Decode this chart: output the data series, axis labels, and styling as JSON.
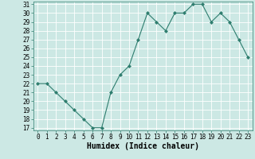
{
  "x": [
    0,
    1,
    2,
    3,
    4,
    5,
    6,
    7,
    8,
    9,
    10,
    11,
    12,
    13,
    14,
    15,
    16,
    17,
    18,
    19,
    20,
    21,
    22,
    23
  ],
  "y": [
    22,
    22,
    21,
    20,
    19,
    18,
    17,
    17,
    21,
    23,
    24,
    27,
    30,
    29,
    28,
    30,
    30,
    31,
    31,
    29,
    30,
    29,
    27,
    25
  ],
  "xlabel": "Humidex (Indice chaleur)",
  "ylim": [
    17,
    31
  ],
  "xlim": [
    -0.5,
    23.5
  ],
  "yticks": [
    17,
    18,
    19,
    20,
    21,
    22,
    23,
    24,
    25,
    26,
    27,
    28,
    29,
    30,
    31
  ],
  "xticks": [
    0,
    1,
    2,
    3,
    4,
    5,
    6,
    7,
    8,
    9,
    10,
    11,
    12,
    13,
    14,
    15,
    16,
    17,
    18,
    19,
    20,
    21,
    22,
    23
  ],
  "line_color": "#2e7d6e",
  "marker_color": "#2e7d6e",
  "bg_color": "#cce8e4",
  "grid_color": "#ffffff",
  "tick_fontsize": 5.5,
  "xlabel_fontsize": 7.0
}
